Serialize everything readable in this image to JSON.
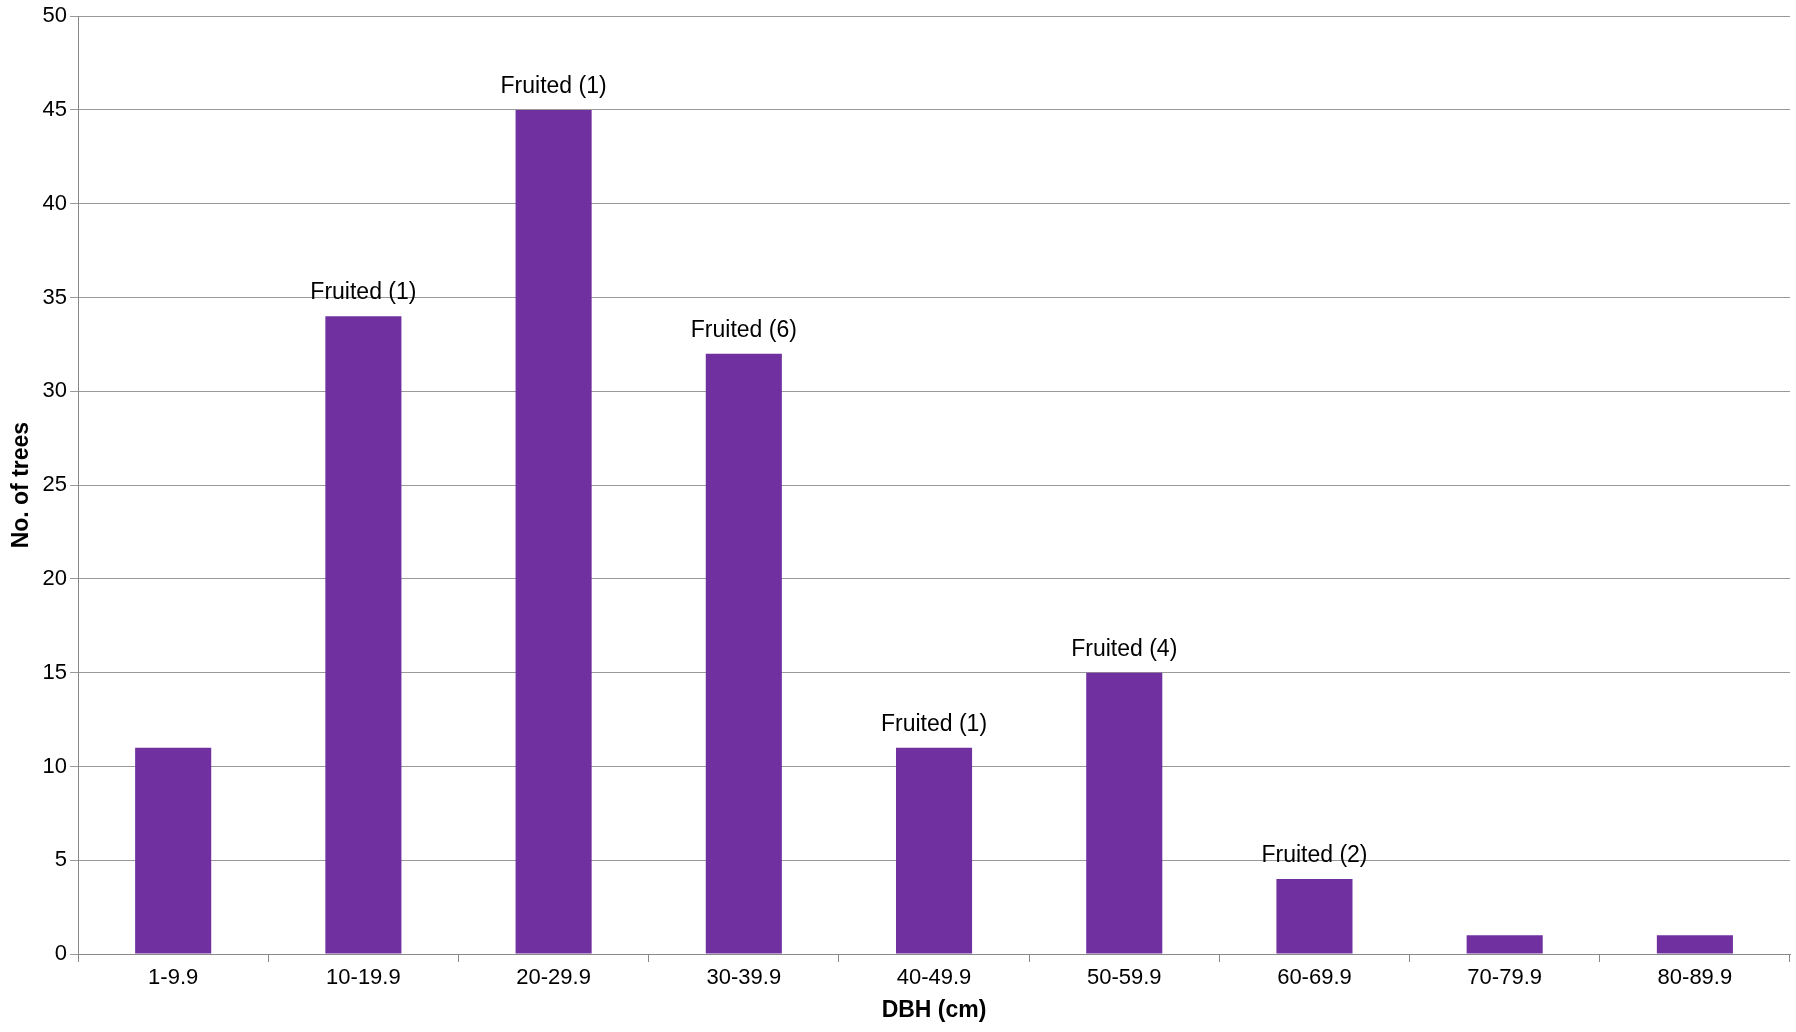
{
  "chart_data": {
    "type": "bar",
    "xlabel": "DBH (cm)",
    "ylabel": "No. of trees",
    "categories": [
      "1-9.9",
      "10-19.9",
      "20-29.9",
      "30-39.9",
      "40-49.9",
      "50-59.9",
      "60-69.9",
      "70-79.9",
      "80-89.9"
    ],
    "values": [
      11,
      34,
      45,
      32,
      11,
      15,
      4,
      1,
      1
    ],
    "annotations": [
      {
        "text": "Fruited (1)",
        "x": "10-19.9",
        "y": 34
      },
      {
        "text": "Fruited (1)",
        "x": "20-29.9",
        "y": 45
      },
      {
        "text": "Fruited (6)",
        "x": "30-39.9",
        "y": 32
      },
      {
        "text": "Fruited (1)",
        "x": "40-49.9",
        "y": 11
      },
      {
        "text": "Fruited (4)",
        "x": "50-59.9",
        "y": 15
      },
      {
        "text": "Fruited (2)",
        "x": "60-69.9",
        "y": 4
      }
    ],
    "color": "#7030a0",
    "ylim": [
      0,
      50
    ],
    "yticks": [
      0,
      5,
      10,
      15,
      20,
      25,
      30,
      35,
      40,
      45,
      50
    ],
    "grid": "y",
    "legend": false
  }
}
